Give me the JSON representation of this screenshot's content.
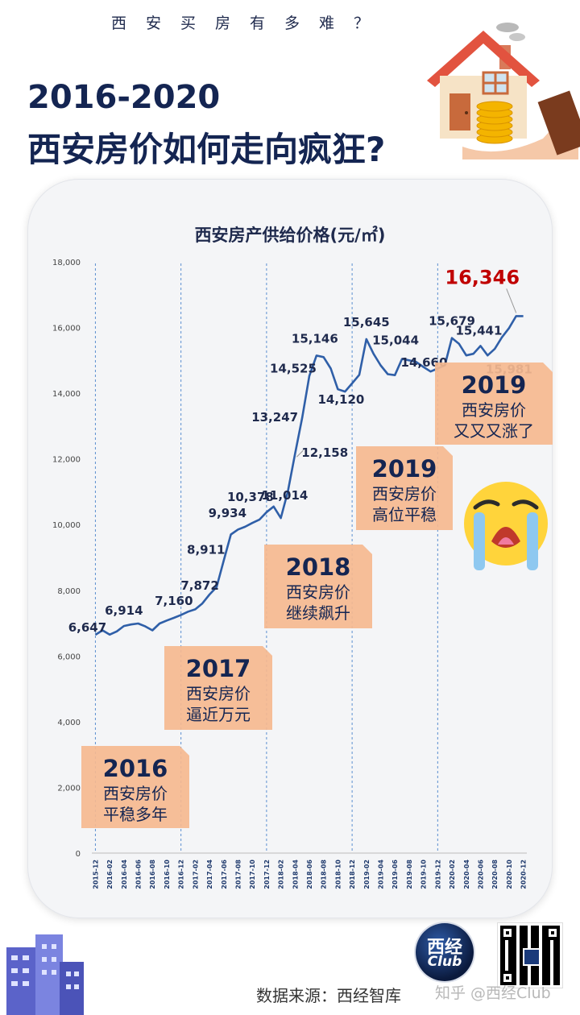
{
  "header": {
    "kicker": "西安买房有多难？",
    "title_line1": "2016-2020",
    "title_line2": "西安房价如何走向疯狂?"
  },
  "footer": {
    "source": "数据来源：西经智库",
    "watermark": "知乎 @西经Club",
    "logo_line1": "西经",
    "logo_line2": "Club"
  },
  "icons": [
    "house-coins-hand-icon",
    "crying-face-icon",
    "building-icon",
    "qr-code-icon"
  ],
  "colors": {
    "line": "#2f5fa8",
    "annotation_box": "#f5b88f",
    "highlight": "#c00000",
    "title": "#142552"
  },
  "chart_data": {
    "type": "line",
    "title": "西安房产供给价格(元/㎡)",
    "ylim": [
      0,
      18000
    ],
    "yticks": [
      0,
      2000,
      4000,
      6000,
      8000,
      10000,
      12000,
      14000,
      16000,
      18000
    ],
    "ytick_labels": [
      "0",
      "2,000",
      "4,000",
      "6,000",
      "8,000",
      "10,000",
      "12,000",
      "14,000",
      "16,000",
      "18,000"
    ],
    "x": [
      "2015-12",
      "2016-01",
      "2016-02",
      "2016-03",
      "2016-04",
      "2016-05",
      "2016-06",
      "2016-07",
      "2016-08",
      "2016-09",
      "2016-10",
      "2016-11",
      "2016-12",
      "2017-01",
      "2017-02",
      "2017-03",
      "2017-04",
      "2017-05",
      "2017-06",
      "2017-07",
      "2017-08",
      "2017-09",
      "2017-10",
      "2017-11",
      "2017-12",
      "2018-01",
      "2018-02",
      "2018-03",
      "2018-04",
      "2018-05",
      "2018-06",
      "2018-07",
      "2018-08",
      "2018-09",
      "2018-10",
      "2018-11",
      "2018-12",
      "2019-01",
      "2019-02",
      "2019-03",
      "2019-04",
      "2019-05",
      "2019-06",
      "2019-07",
      "2019-08",
      "2019-09",
      "2019-10",
      "2019-11",
      "2019-12",
      "2020-01",
      "2020-02",
      "2020-03",
      "2020-04",
      "2020-05",
      "2020-06",
      "2020-07",
      "2020-08",
      "2020-09",
      "2020-10",
      "2020-11",
      "2020-12"
    ],
    "xtick_labels": [
      "2015-12",
      "2016-02",
      "2016-04",
      "2016-06",
      "2016-08",
      "2016-10",
      "2016-12",
      "2017-02",
      "2017-04",
      "2017-06",
      "2017-08",
      "2017-10",
      "2017-12",
      "2018-02",
      "2018-04",
      "2018-06",
      "2018-08",
      "2018-10",
      "2018-12",
      "2019-02",
      "2019-04",
      "2019-06",
      "2019-08",
      "2019-10",
      "2019-12",
      "2020-02",
      "2020-04",
      "2020-06",
      "2020-08",
      "2020-10",
      "2020-12"
    ],
    "series": [
      {
        "values": [
          6647,
          6780,
          6650,
          6750,
          6914,
          6960,
          6990,
          6900,
          6780,
          6990,
          7080,
          7160,
          7250,
          7350,
          7420,
          7600,
          7872,
          8100,
          8911,
          9700,
          9850,
          9934,
          10050,
          10150,
          10378,
          10550,
          10200,
          11014,
          12158,
          13247,
          14525,
          15146,
          15100,
          14750,
          14120,
          14050,
          14300,
          14560,
          15645,
          15200,
          14850,
          14580,
          14550,
          15044,
          15000,
          14950,
          14800,
          14660,
          14750,
          14850,
          15679,
          15500,
          15150,
          15200,
          15441,
          15150,
          15350,
          15700,
          15981,
          16346,
          16346
        ]
      }
    ],
    "value_labels": [
      {
        "x": "2015-12",
        "text": "6,647"
      },
      {
        "x": "2016-04",
        "text": "6,914"
      },
      {
        "x": "2016-11",
        "text": "7,160"
      },
      {
        "x": "2017-04",
        "text": "7,872"
      },
      {
        "x": "2017-06",
        "text": "8,911"
      },
      {
        "x": "2017-09",
        "text": "9,934"
      },
      {
        "x": "2017-12",
        "text": "10,378"
      },
      {
        "x": "2018-03",
        "text": "11,014"
      },
      {
        "x": "2018-04",
        "text": "12,158"
      },
      {
        "x": "2018-05",
        "text": "13,247"
      },
      {
        "x": "2018-06",
        "text": "14,525"
      },
      {
        "x": "2018-07",
        "text": "15,146"
      },
      {
        "x": "2018-10",
        "text": "14,120"
      },
      {
        "x": "2019-02",
        "text": "15,645"
      },
      {
        "x": "2019-07",
        "text": "15,044"
      },
      {
        "x": "2019-11",
        "text": "14,660"
      },
      {
        "x": "2020-02",
        "text": "15,679"
      },
      {
        "x": "2020-06",
        "text": "15,441"
      },
      {
        "x": "2020-10",
        "text": "15,981"
      },
      {
        "x": "2020-11",
        "text": "16,346",
        "highlight": true
      }
    ],
    "dividers": [
      "2015-12",
      "2016-12",
      "2017-12",
      "2018-12",
      "2019-12"
    ],
    "annotations": [
      {
        "year": "2016",
        "line1": "西安房价",
        "line2": "平稳多年"
      },
      {
        "year": "2017",
        "line1": "西安房价",
        "line2": "逼近万元"
      },
      {
        "year": "2018",
        "line1": "西安房价",
        "line2": "继续飙升"
      },
      {
        "year": "2019",
        "line1": "西安房价",
        "line2": "高位平稳"
      },
      {
        "year": "2019",
        "line1": "西安房价",
        "line2": "又又又涨了"
      }
    ]
  }
}
